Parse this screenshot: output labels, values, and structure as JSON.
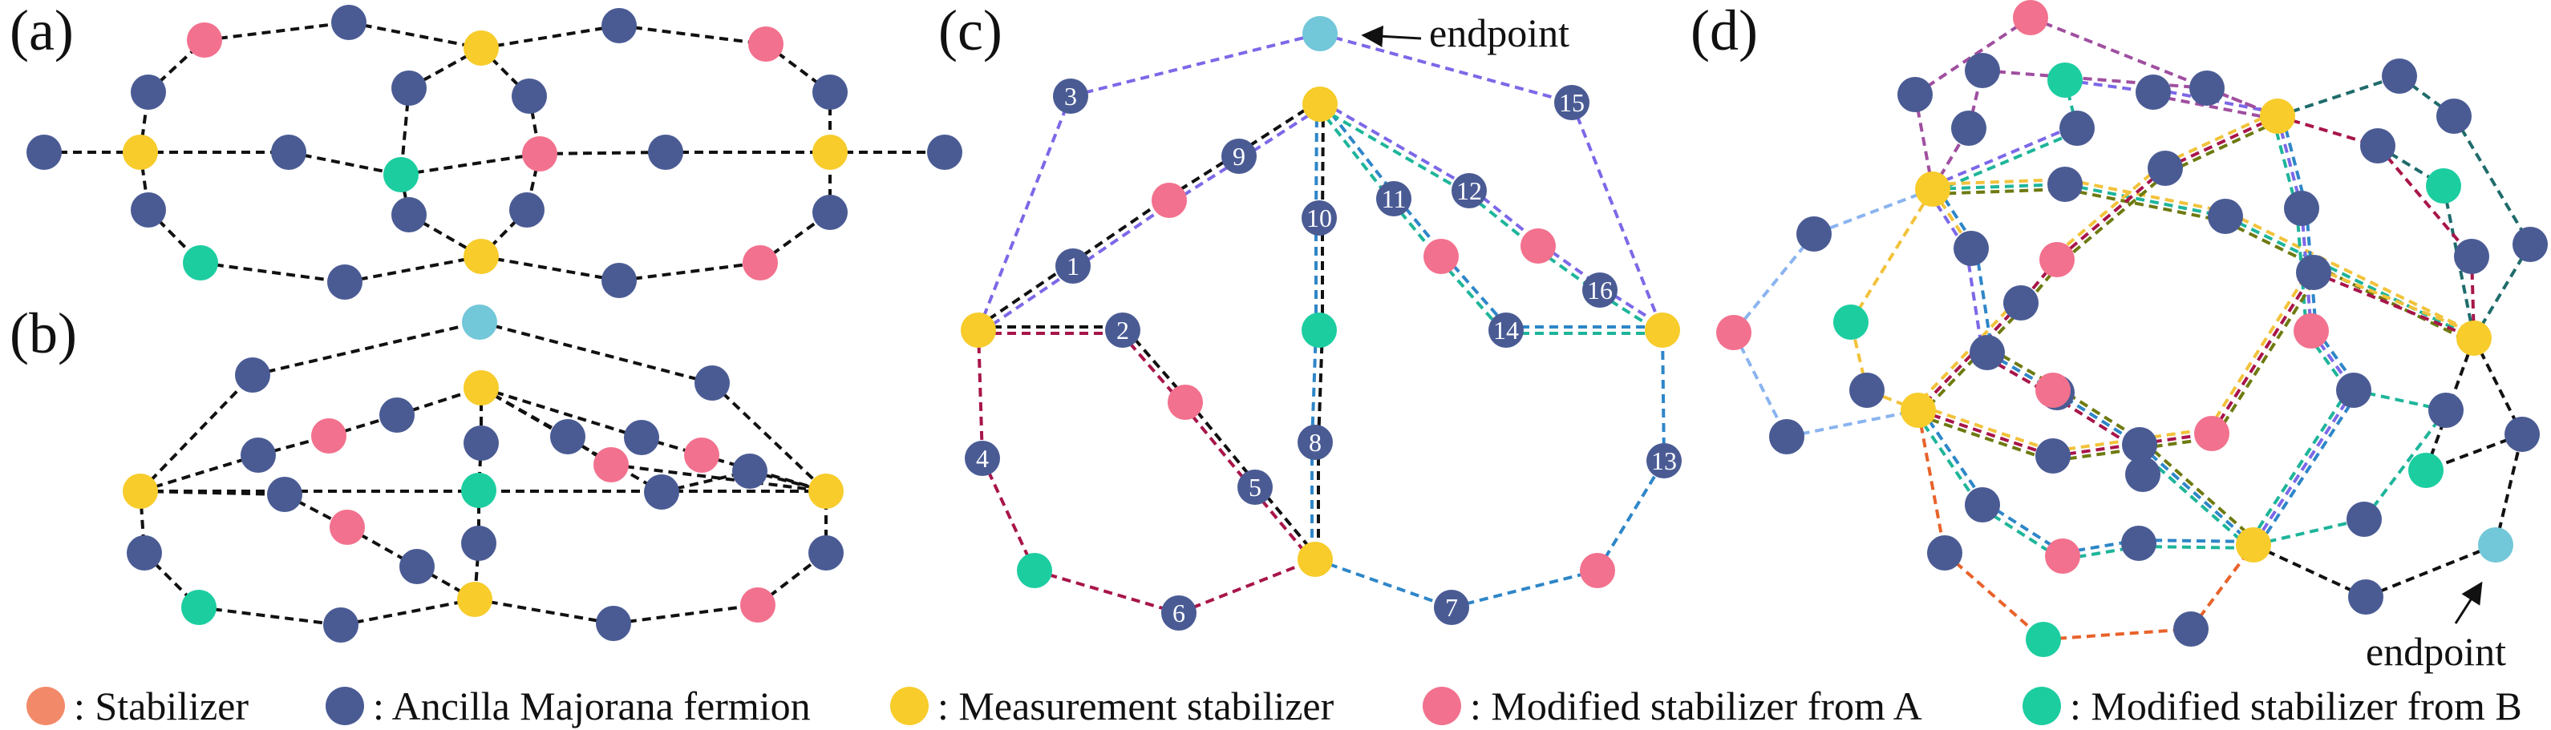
{
  "panel_labels": {
    "a": "(a)",
    "b": "(b)",
    "c": "(c)",
    "d": "(d)"
  },
  "annotations": {
    "endpoint_c": "endpoint",
    "endpoint_d": "endpoint"
  },
  "legend": [
    {
      "label": ": Stabilizer",
      "color": "#F28A6A"
    },
    {
      "label": ": Ancilla Majorana fermion",
      "color": "#4A5B94"
    },
    {
      "label": ": Measurement stabilizer",
      "color": "#F7CC2B"
    },
    {
      "label": ": Modified stabilizer from A",
      "color": "#F2718E"
    },
    {
      "label": ": Modified stabilizer from B",
      "color": "#1CCDA0"
    }
  ],
  "colors": {
    "ancilla": "#4A5B94",
    "measurement": "#F7CC2B",
    "modified_a": "#F2718E",
    "modified_b": "#1CCDA0",
    "endpoint": "#72C7D8",
    "edge_black": "#111111",
    "edge_purple": "#7C68E8",
    "edge_blue": "#2E86C8",
    "edge_crimson": "#A8154A",
    "edge_teal": "#1EB59A",
    "edge_olive": "#6E7A10",
    "edge_gold": "#F2C23A",
    "edge_orange": "#E8622A",
    "edge_lightblue": "#8AB4F0",
    "edge_magenta": "#A04FA0",
    "edge_darkteal": "#1F6B6B"
  },
  "panel_c_numbers": [
    "1",
    "2",
    "3",
    "4",
    "5",
    "6",
    "7",
    "8",
    "9",
    "10",
    "11",
    "12",
    "13",
    "14",
    "15",
    "16"
  ]
}
